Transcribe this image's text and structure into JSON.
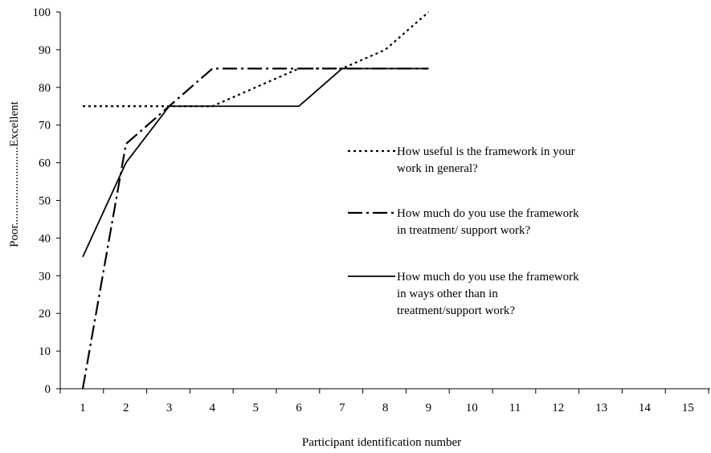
{
  "chart_data": {
    "type": "line",
    "title": "",
    "xlabel": "Participant identification number",
    "ylabel_low": "Poor",
    "ylabel_dots": "..........................",
    "ylabel_high": "Excellent",
    "x": [
      1,
      2,
      3,
      4,
      5,
      6,
      7,
      8,
      9,
      10,
      11,
      12,
      13,
      14,
      15
    ],
    "xlim": [
      1,
      15
    ],
    "ylim": [
      0,
      100
    ],
    "yticks": [
      0,
      10,
      20,
      30,
      40,
      50,
      60,
      70,
      80,
      90,
      100
    ],
    "grid": false,
    "legend_placement": "center-right",
    "series": [
      {
        "name": "How useful is the framework in your work in general?",
        "name_lines": [
          "How useful is the framework in your",
          "work in general?"
        ],
        "style": "dotted",
        "x": [
          1,
          2,
          3,
          4,
          5,
          6,
          7,
          8,
          9
        ],
        "values": [
          75,
          75,
          75,
          75,
          80,
          85,
          85,
          90,
          100
        ]
      },
      {
        "name": "How much do you use the framework in treatment/ support work?",
        "name_lines": [
          "How much do you use the framework",
          "in treatment/ support work?"
        ],
        "style": "dash-dot",
        "x": [
          1,
          2,
          3,
          4,
          5,
          6,
          7,
          8,
          9
        ],
        "values": [
          0,
          65,
          75,
          85,
          85,
          85,
          85,
          85,
          85
        ]
      },
      {
        "name": "How much do you use the framework in ways other than in treatment/support work?",
        "name_lines": [
          "How much do you use the framework",
          "in ways other than in",
          "treatment/support work?"
        ],
        "style": "solid",
        "x": [
          1,
          2,
          3,
          4,
          5,
          6,
          7,
          8,
          9
        ],
        "values": [
          35,
          60,
          75,
          75,
          75,
          75,
          85,
          85,
          85
        ]
      }
    ]
  }
}
